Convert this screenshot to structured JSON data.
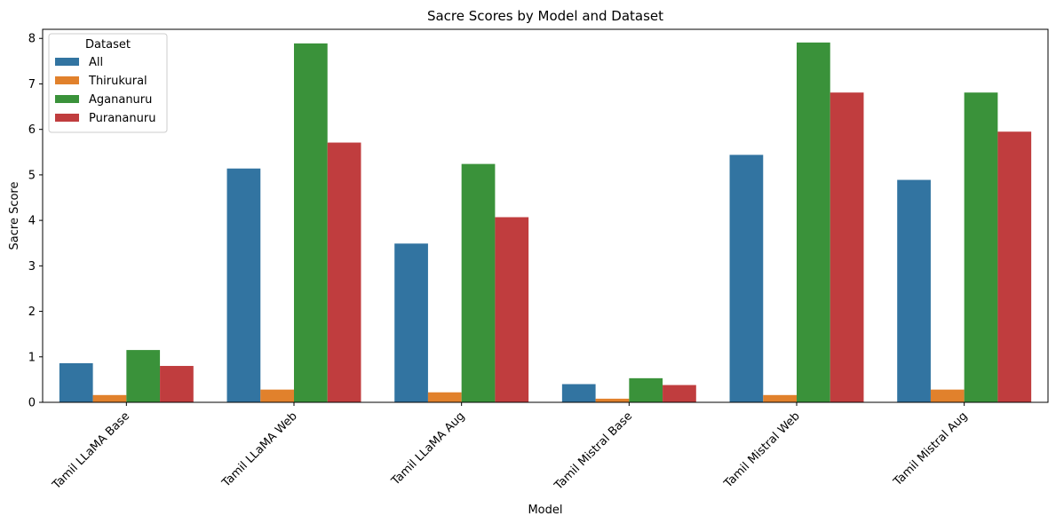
{
  "chart_data": {
    "type": "bar",
    "title": "Sacre Scores by Model and Dataset",
    "xlabel": "Model",
    "ylabel": "Sacre Score",
    "ylim": [
      0,
      8.2
    ],
    "yticks": [
      0,
      1,
      2,
      3,
      4,
      5,
      6,
      7,
      8
    ],
    "grid": false,
    "legend": {
      "title": "Dataset",
      "placement": "top-left"
    },
    "categories": [
      "Tamil LLaMA Base",
      "Tamil LLaMA Web",
      "Tamil LLaMA Aug",
      "Tamil Mistral Base",
      "Tamil Mistral Web",
      "Tamil Mistral Aug"
    ],
    "series": [
      {
        "name": "All",
        "color": "#3274a1",
        "values": [
          0.86,
          5.14,
          3.49,
          0.4,
          5.44,
          4.89
        ]
      },
      {
        "name": "Thirukural",
        "color": "#e1812c",
        "values": [
          0.16,
          0.28,
          0.22,
          0.08,
          0.16,
          0.28
        ]
      },
      {
        "name": "Agananuru",
        "color": "#3a923a",
        "values": [
          1.15,
          7.89,
          5.24,
          0.53,
          7.91,
          6.81
        ]
      },
      {
        "name": "Purananuru",
        "color": "#c03d3e",
        "values": [
          0.8,
          5.71,
          4.07,
          0.38,
          6.81,
          5.95
        ]
      }
    ]
  }
}
